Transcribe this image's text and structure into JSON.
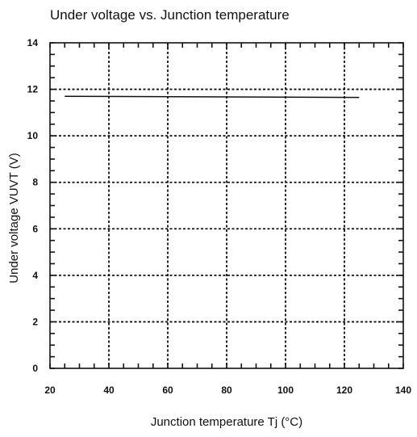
{
  "chart_data": {
    "type": "line",
    "title": "Under voltage vs. Junction temperature",
    "xlabel": "Junction temperature  Tj (°C)",
    "ylabel": "Under voltage  VUVT (V)",
    "xlim": [
      20,
      140
    ],
    "ylim": [
      0,
      14
    ],
    "x_ticks": [
      20,
      40,
      60,
      80,
      100,
      120,
      140
    ],
    "y_ticks": [
      0,
      2,
      4,
      6,
      8,
      10,
      12,
      14
    ],
    "grid": true,
    "series": [
      {
        "x": [
          25,
          125
        ],
        "y": [
          11.7,
          11.65
        ]
      }
    ]
  }
}
